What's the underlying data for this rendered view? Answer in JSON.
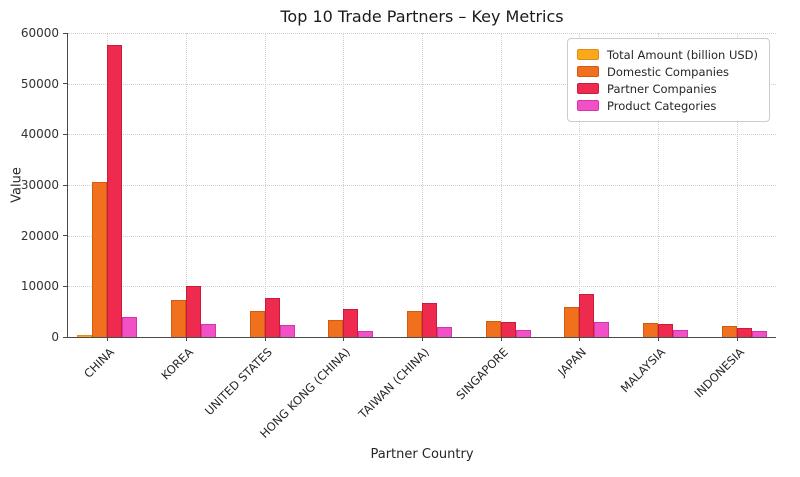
{
  "figure": {
    "title": "Top 10 Trade Partners – Key Metrics",
    "background_color": "#ffffff",
    "axis_color": "#4a4a4a",
    "grid_color": "#cfcfcf"
  },
  "chart_data": {
    "type": "bar",
    "title": "Top 10 Trade Partners – Key Metrics",
    "xlabel": "Partner Country",
    "ylabel": "Value",
    "ylim": [
      0,
      60000
    ],
    "yticks": [
      0,
      10000,
      20000,
      30000,
      40000,
      50000,
      60000
    ],
    "grid": true,
    "grid_style": "dotted",
    "legend_position": "upper right",
    "categories": [
      "CHINA",
      "KOREA",
      "UNITED STATES",
      "HONG KONG (CHINA)",
      "TAIWAN (CHINA)",
      "SINGAPORE",
      "JAPAN",
      "MALAYSIA",
      "INDONESIA"
    ],
    "series": [
      {
        "name": "Total Amount (billion USD)",
        "color": "#FBA81D",
        "edge_color": "#DE8F12",
        "values": [
          300,
          75,
          70,
          30,
          35,
          25,
          50,
          20,
          20
        ]
      },
      {
        "name": "Domestic Companies",
        "color": "#F1701E",
        "edge_color": "#D25B12",
        "values": [
          30500,
          7300,
          5200,
          3400,
          5100,
          3250,
          6000,
          2800,
          2100
        ]
      },
      {
        "name": "Partner Companies",
        "color": "#EE2B4F",
        "edge_color": "#C91C3D",
        "values": [
          57700,
          10000,
          7600,
          5500,
          6700,
          2950,
          8500,
          2650,
          1850
        ]
      },
      {
        "name": "Product Categories",
        "color": "#F150C7",
        "edge_color": "#D436A8",
        "values": [
          3900,
          2600,
          2300,
          1250,
          2050,
          1450,
          2950,
          1400,
          1150
        ]
      }
    ]
  }
}
